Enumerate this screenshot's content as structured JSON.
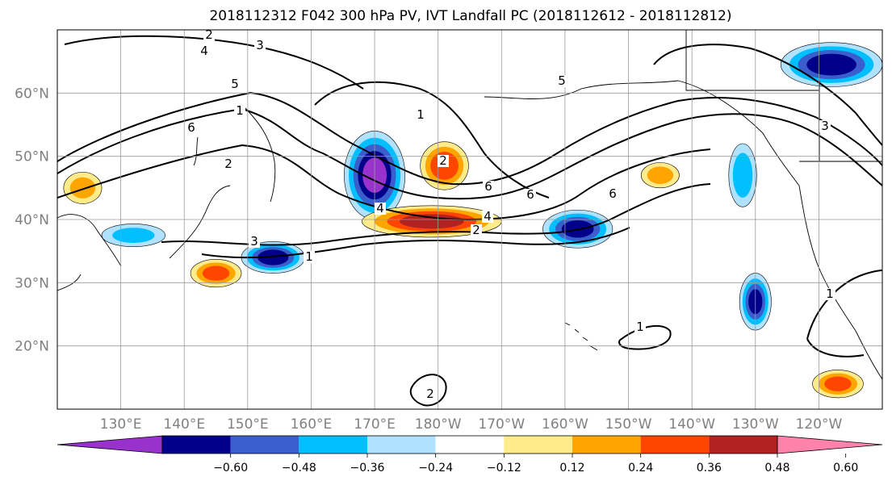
{
  "chart_data": {
    "type": "heatmap",
    "title": "2018112312 F042 300 hPa PV, IVT Landfall PC (2018112612 - 2018112812)",
    "map": {
      "lon_range": [
        120,
        250
      ],
      "lat_range": [
        10,
        70
      ],
      "gridlines": true,
      "projection": "PlateCarree",
      "lat_ticks": [
        {
          "value": 60,
          "label": "60°N"
        },
        {
          "value": 50,
          "label": "50°N"
        },
        {
          "value": 40,
          "label": "40°N"
        },
        {
          "value": 30,
          "label": "30°N"
        },
        {
          "value": 20,
          "label": "20°N"
        }
      ],
      "lon_ticks": [
        {
          "value": 130,
          "label": "130°E"
        },
        {
          "value": 140,
          "label": "140°E"
        },
        {
          "value": 150,
          "label": "150°E"
        },
        {
          "value": 160,
          "label": "160°E"
        },
        {
          "value": 170,
          "label": "170°E"
        },
        {
          "value": 180,
          "label": "180°W"
        },
        {
          "value": 190,
          "label": "170°W"
        },
        {
          "value": 200,
          "label": "160°W"
        },
        {
          "value": 210,
          "label": "150°W"
        },
        {
          "value": 220,
          "label": "140°W"
        },
        {
          "value": 230,
          "label": "130°W"
        },
        {
          "value": 240,
          "label": "120°W"
        }
      ]
    },
    "colorbar": {
      "extend": "both",
      "levels": [
        -0.72,
        -0.6,
        -0.48,
        -0.36,
        -0.24,
        -0.12,
        0.12,
        0.24,
        0.36,
        0.48,
        0.6,
        0.72
      ],
      "colors": [
        "#9932cc",
        "#00008b",
        "#3a5fcd",
        "#00bfff",
        "#b0e2ff",
        "#ffffff",
        "#ffeb8a",
        "#ffa500",
        "#ff4500",
        "#b22222",
        "#ff82ab"
      ],
      "tick_values": [
        -0.6,
        -0.48,
        -0.36,
        -0.24,
        -0.12,
        0.12,
        0.24,
        0.36,
        0.48,
        0.6
      ],
      "tick_labels": [
        "−0.60",
        "−0.48",
        "−0.36",
        "−0.24",
        "−0.12",
        "0.12",
        "0.24",
        "0.36",
        "0.48",
        "0.60"
      ]
    },
    "shaded_features": [
      {
        "name": "blue-tongue-NW-Pacific",
        "polarity": "negative",
        "peak": -0.62,
        "lon": 170,
        "lat": 47,
        "rx": 4.8,
        "ry": 7.0
      },
      {
        "name": "blue-blob-SE-Japan",
        "polarity": "negative",
        "peak": -0.55,
        "lon": 154,
        "lat": 34,
        "rx": 5.0,
        "ry": 2.5
      },
      {
        "name": "blue-blob-central-Pacific",
        "polarity": "negative",
        "peak": -0.52,
        "lon": 202,
        "lat": 38.5,
        "rx": 5.5,
        "ry": 3.0
      },
      {
        "name": "blue-blob-Alaska",
        "polarity": "negative",
        "peak": -0.55,
        "lon": 242,
        "lat": 64.5,
        "rx": 8.0,
        "ry": 3.5
      },
      {
        "name": "blue-blob-west-coast",
        "polarity": "negative",
        "peak": -0.5,
        "lon": 230,
        "lat": 27,
        "rx": 2.5,
        "ry": 4.5
      },
      {
        "name": "blue-blob-offshore-45N",
        "polarity": "negative",
        "peak": -0.32,
        "lon": 228,
        "lat": 47,
        "rx": 2.2,
        "ry": 5.0
      },
      {
        "name": "blue-blob-north-Japan",
        "polarity": "negative",
        "peak": -0.28,
        "lon": 132,
        "lat": 37.5,
        "rx": 5.0,
        "ry": 1.8
      },
      {
        "name": "red-jet-streak",
        "polarity": "positive",
        "peak": 0.52,
        "lon": 179,
        "lat": 39.7,
        "rx": 11.0,
        "ry": 2.5
      },
      {
        "name": "red-blob-east-of-tongue",
        "polarity": "positive",
        "peak": 0.45,
        "lon": 181,
        "lat": 48.5,
        "rx": 3.8,
        "ry": 3.8
      },
      {
        "name": "red-blob-south-Japan",
        "polarity": "positive",
        "peak": 0.4,
        "lon": 145,
        "lat": 31.5,
        "rx": 4.0,
        "ry": 2.2
      },
      {
        "name": "red-blob-Baja",
        "polarity": "positive",
        "peak": 0.4,
        "lon": 243,
        "lat": 14,
        "rx": 4.0,
        "ry": 2.2
      },
      {
        "name": "orange-blob-145W",
        "polarity": "positive",
        "peak": 0.3,
        "lon": 215,
        "lat": 47,
        "rx": 3.0,
        "ry": 2.0
      },
      {
        "name": "orange-blob-Japan-sea",
        "polarity": "positive",
        "peak": 0.28,
        "lon": 124,
        "lat": 45,
        "rx": 3.0,
        "ry": 2.5
      }
    ],
    "pv_contours": {
      "color": "#000000",
      "labels": [
        "2",
        "3",
        "4",
        "5",
        "1",
        "6",
        "2",
        "6",
        "3",
        "1",
        "4",
        "1",
        "2",
        "6",
        "4",
        "5",
        "2",
        "6",
        "1",
        "3",
        "1",
        "2"
      ]
    }
  }
}
